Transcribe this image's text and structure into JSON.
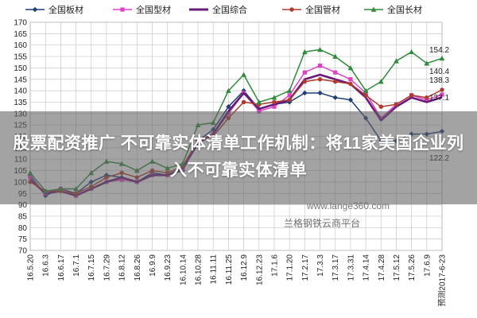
{
  "headline": "股票配资推广 不可靠实体清单工作机制：将11家美国企业列入不可靠实体清单",
  "watermark": {
    "url": "www.lange360.com",
    "platform": "兰格钢铁云商平台"
  },
  "chart_data": {
    "type": "line",
    "ylim": [
      70,
      170
    ],
    "yticks": [
      70,
      75,
      80,
      85,
      90,
      95,
      100,
      105,
      110,
      115,
      120,
      125,
      130,
      135,
      140,
      145,
      150,
      155,
      160,
      165,
      170
    ],
    "grid": true,
    "legend_position": "top",
    "x": [
      "16.5.20",
      "16.6.3",
      "16.6.17",
      "16.7.1",
      "16.7.15",
      "16.7.29",
      "16.8.12",
      "16.8.26",
      "16.9.9",
      "16.9.23",
      "16.10.14",
      "16.10.28",
      "16.11.11",
      "16.11.25",
      "16.12.9",
      "16.12.23",
      "17.1.6",
      "17.1.20",
      "17.2.17",
      "17.3.3",
      "17.3.17",
      "17.3.31",
      "17.4.14",
      "17.4.28",
      "17.5.12",
      "17.5.26",
      "17.6.9",
      "预测2017-6-23"
    ],
    "series": [
      {
        "name": "全国板材",
        "color": "#1f3f7a",
        "marker": "diamond",
        "values": [
          103,
          94,
          97,
          95,
          100,
          103,
          102,
          100,
          104,
          103,
          105,
          118,
          123,
          133,
          140,
          132,
          134,
          135,
          139,
          139,
          137,
          136,
          128,
          118,
          118,
          121,
          121,
          122.2
        ]
      },
      {
        "name": "全国型材",
        "color": "#e040c8",
        "marker": "square",
        "values": [
          102,
          95,
          97,
          94,
          97,
          100,
          101,
          100,
          103,
          103,
          106,
          118,
          121,
          130,
          139,
          131,
          133,
          138,
          148,
          151,
          148,
          145,
          139,
          128,
          134,
          138,
          136,
          138.3
        ]
      },
      {
        "name": "全国综合",
        "color": "#6a1b7a",
        "marker": "none",
        "values": [
          101,
          95,
          96,
          94,
          97,
          100,
          102,
          100,
          103,
          103,
          106,
          117,
          121,
          131,
          139,
          132,
          134,
          136,
          145,
          147,
          145,
          143,
          137,
          127,
          133,
          137,
          135,
          137.1
        ]
      },
      {
        "name": "全国管材",
        "color": "#b03a2e",
        "marker": "circle",
        "values": [
          100,
          96,
          96,
          95,
          98,
          102,
          104,
          102,
          105,
          104,
          107,
          118,
          120,
          128,
          135,
          134,
          135,
          136,
          144,
          145,
          144,
          143,
          138,
          133,
          134,
          138,
          137,
          140.4
        ]
      },
      {
        "name": "全国长材",
        "color": "#2e8b3a",
        "marker": "triangle",
        "values": [
          104,
          96,
          97,
          97,
          104,
          109,
          108,
          105,
          109,
          106,
          108,
          125,
          126,
          140,
          147,
          135,
          137,
          140,
          157,
          158,
          155,
          150,
          140,
          144,
          153,
          157,
          152,
          154.2
        ]
      }
    ],
    "end_labels": [
      "154.2",
      "140.4",
      "138.3",
      "137.1",
      "122.2"
    ]
  }
}
